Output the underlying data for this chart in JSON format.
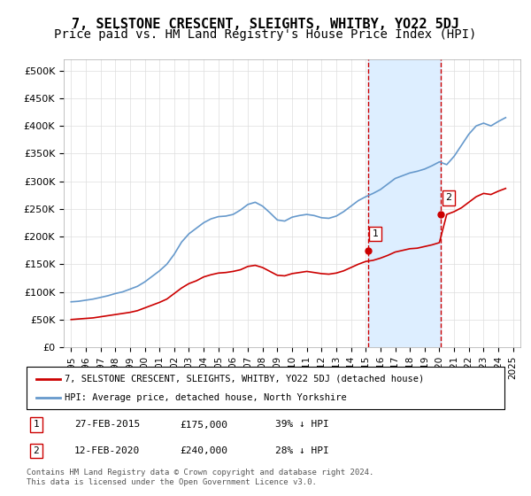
{
  "title": "7, SELSTONE CRESCENT, SLEIGHTS, WHITBY, YO22 5DJ",
  "subtitle": "Price paid vs. HM Land Registry's House Price Index (HPI)",
  "ylabel_ticks": [
    "£0",
    "£50K",
    "£100K",
    "£150K",
    "£200K",
    "£250K",
    "£300K",
    "£350K",
    "£400K",
    "£450K",
    "£500K"
  ],
  "ytick_values": [
    0,
    50000,
    100000,
    150000,
    200000,
    250000,
    300000,
    350000,
    400000,
    450000,
    500000
  ],
  "ylim": [
    0,
    520000
  ],
  "xlim_min": 1994.5,
  "xlim_max": 2025.5,
  "transaction1_date": 2015.15,
  "transaction1_price": 175000,
  "transaction1_label": "1",
  "transaction2_date": 2020.12,
  "transaction2_price": 240000,
  "transaction2_label": "2",
  "red_line_color": "#cc0000",
  "blue_line_color": "#6699cc",
  "shade_color": "#ddeeff",
  "vline_color": "#cc0000",
  "title_fontsize": 11,
  "subtitle_fontsize": 10,
  "footnote": "Contains HM Land Registry data © Crown copyright and database right 2024.\nThis data is licensed under the Open Government Licence v3.0.",
  "legend_line1": "7, SELSTONE CRESCENT, SLEIGHTS, WHITBY, YO22 5DJ (detached house)",
  "legend_line2": "HPI: Average price, detached house, North Yorkshire",
  "table_row1": [
    "1",
    "27-FEB-2015",
    "£175,000",
    "39% ↓ HPI"
  ],
  "table_row2": [
    "2",
    "12-FEB-2020",
    "£240,000",
    "28% ↓ HPI"
  ],
  "hpi_x": [
    1995.0,
    1995.5,
    1996.0,
    1996.5,
    1997.0,
    1997.5,
    1998.0,
    1998.5,
    1999.0,
    1999.5,
    2000.0,
    2000.5,
    2001.0,
    2001.5,
    2002.0,
    2002.5,
    2003.0,
    2003.5,
    2004.0,
    2004.5,
    2005.0,
    2005.5,
    2006.0,
    2006.5,
    2007.0,
    2007.5,
    2008.0,
    2008.5,
    2009.0,
    2009.5,
    2010.0,
    2010.5,
    2011.0,
    2011.5,
    2012.0,
    2012.5,
    2013.0,
    2013.5,
    2014.0,
    2014.5,
    2015.0,
    2015.5,
    2016.0,
    2016.5,
    2017.0,
    2017.5,
    2018.0,
    2018.5,
    2019.0,
    2019.5,
    2020.0,
    2020.5,
    2021.0,
    2021.5,
    2022.0,
    2022.5,
    2023.0,
    2023.5,
    2024.0,
    2024.5
  ],
  "hpi_y": [
    82000,
    83000,
    85000,
    87000,
    90000,
    93000,
    97000,
    100000,
    105000,
    110000,
    118000,
    128000,
    138000,
    150000,
    168000,
    190000,
    205000,
    215000,
    225000,
    232000,
    236000,
    237000,
    240000,
    248000,
    258000,
    262000,
    255000,
    243000,
    230000,
    228000,
    235000,
    238000,
    240000,
    238000,
    234000,
    233000,
    237000,
    245000,
    255000,
    265000,
    272000,
    278000,
    285000,
    295000,
    305000,
    310000,
    315000,
    318000,
    322000,
    328000,
    335000,
    330000,
    345000,
    365000,
    385000,
    400000,
    405000,
    400000,
    408000,
    415000
  ],
  "red_x": [
    1995.0,
    1995.5,
    1996.0,
    1996.5,
    1997.0,
    1997.5,
    1998.0,
    1998.5,
    1999.0,
    1999.5,
    2000.0,
    2000.5,
    2001.0,
    2001.5,
    2002.0,
    2002.5,
    2003.0,
    2003.5,
    2004.0,
    2004.5,
    2005.0,
    2005.5,
    2006.0,
    2006.5,
    2007.0,
    2007.5,
    2008.0,
    2008.5,
    2009.0,
    2009.5,
    2010.0,
    2010.5,
    2011.0,
    2011.5,
    2012.0,
    2012.5,
    2013.0,
    2013.5,
    2014.0,
    2014.5,
    2015.0,
    2015.5,
    2016.0,
    2016.5,
    2017.0,
    2017.5,
    2018.0,
    2018.5,
    2019.0,
    2019.5,
    2020.0,
    2020.5,
    2021.0,
    2021.5,
    2022.0,
    2022.5,
    2023.0,
    2023.5,
    2024.0,
    2024.5
  ],
  "red_y": [
    50000,
    51000,
    52000,
    53000,
    55000,
    57000,
    59000,
    61000,
    63000,
    66000,
    71000,
    76000,
    81000,
    87000,
    97000,
    107000,
    115000,
    120000,
    127000,
    131000,
    134000,
    135000,
    137000,
    140000,
    146000,
    148000,
    144000,
    137000,
    130000,
    129000,
    133000,
    135000,
    137000,
    135000,
    133000,
    132000,
    134000,
    138000,
    144000,
    150000,
    155000,
    157000,
    161000,
    166000,
    172000,
    175000,
    178000,
    179000,
    182000,
    185000,
    189000,
    240000,
    245000,
    252000,
    262000,
    272000,
    278000,
    276000,
    282000,
    287000
  ]
}
